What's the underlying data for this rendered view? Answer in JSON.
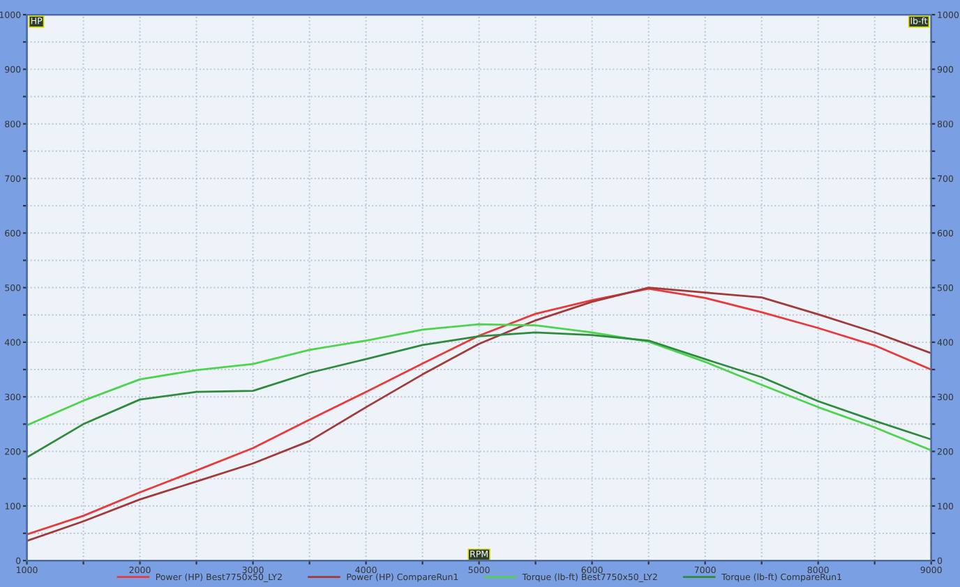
{
  "chart_data": {
    "type": "line",
    "xlabel": "RPM",
    "ylabel": "HP",
    "y2label": "lb-ft",
    "x": [
      1000,
      1500,
      2000,
      2500,
      3000,
      3500,
      4000,
      4500,
      5000,
      5500,
      6000,
      6500,
      7000,
      7500,
      8000,
      8500,
      9000
    ],
    "series": [
      {
        "name": "Power (HP) Best7750x50_LY2",
        "color": "#e83a3a",
        "values": [
          48,
          82,
          125,
          165,
          206,
          258,
          309,
          361,
          412,
          452,
          477,
          498,
          481,
          455,
          426,
          394,
          350
        ]
      },
      {
        "name": "Power (HP) CompareRun1",
        "color": "#a23a3a",
        "values": [
          36,
          72,
          112,
          145,
          178,
          219,
          281,
          341,
          397,
          440,
          474,
          500,
          491,
          482,
          451,
          418,
          380
        ]
      },
      {
        "name": "Torque (lb-ft) Best7750x50_LY2",
        "color": "#4cd44c",
        "values": [
          248,
          293,
          332,
          349,
          360,
          386,
          403,
          423,
          433,
          431,
          418,
          401,
          364,
          322,
          281,
          244,
          202
        ],
        "axis": "y2"
      },
      {
        "name": "Torque (lb-ft) CompareRun1",
        "color": "#2e8b3e",
        "values": [
          189,
          250,
          295,
          309,
          311,
          344,
          369,
          395,
          411,
          418,
          413,
          403,
          369,
          336,
          292,
          256,
          222
        ],
        "axis": "y2"
      }
    ],
    "xlim": [
      1000,
      9000
    ],
    "xticks": [
      1000,
      {
        "value": 1500,
        "label": null
      },
      2000,
      {
        "value": 2500,
        "label": null
      },
      3000,
      {
        "value": 3500,
        "label": null
      },
      4000,
      {
        "value": 4500,
        "label": null
      },
      5000,
      {
        "value": 5500,
        "label": null
      },
      6000,
      {
        "value": 6500,
        "label": null
      },
      7000,
      {
        "value": 7500,
        "label": null
      },
      8000,
      {
        "value": 8500,
        "label": null
      },
      9000
    ],
    "ylim": [
      0,
      1000
    ],
    "yticks": [
      0,
      {
        "value": 50,
        "label": null
      },
      100,
      {
        "value": 150,
        "label": null
      },
      200,
      {
        "value": 250,
        "label": null
      },
      300,
      {
        "value": 350,
        "label": null
      },
      400,
      {
        "value": 450,
        "label": null
      },
      500,
      {
        "value": 550,
        "label": null
      },
      600,
      {
        "value": 650,
        "label": null
      },
      700,
      {
        "value": 750,
        "label": null
      },
      800,
      {
        "value": 850,
        "label": null
      },
      900,
      {
        "value": 950,
        "label": null
      },
      1000
    ],
    "y2lim": [
      0,
      1000
    ],
    "y2ticks": [
      0,
      {
        "value": 50,
        "label": null
      },
      100,
      {
        "value": 150,
        "label": null
      },
      200,
      {
        "value": 250,
        "label": null
      },
      300,
      {
        "value": 350,
        "label": null
      },
      400,
      {
        "value": 450,
        "label": null
      },
      500,
      {
        "value": 550,
        "label": null
      },
      600,
      {
        "value": 650,
        "label": null
      },
      700,
      {
        "value": 750,
        "label": null
      },
      800,
      {
        "value": 850,
        "label": null
      },
      900,
      {
        "value": 950,
        "label": null
      },
      1000
    ],
    "grid": true,
    "legend": "bottom",
    "marker": "none",
    "line_style": "solid"
  }
}
